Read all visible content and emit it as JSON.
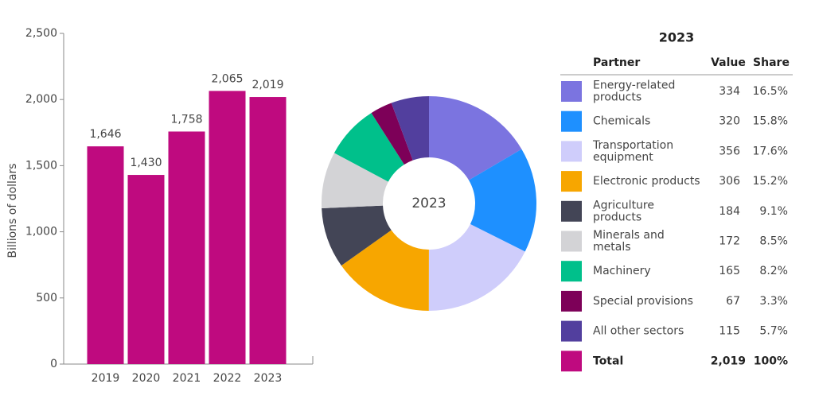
{
  "chart_data": [
    {
      "type": "bar",
      "ylabel": "Billions of dollars",
      "categories": [
        "2019",
        "2020",
        "2021",
        "2022",
        "2023"
      ],
      "values": [
        1646,
        1430,
        1758,
        2065,
        2019
      ],
      "value_labels": [
        "1,646",
        "1,430",
        "1,758",
        "2,065",
        "2,019"
      ],
      "color": "#bf0a7f",
      "ylim": [
        0,
        2500
      ],
      "yticks": [
        0,
        500,
        {
          "value": 1000,
          "label": "1,000"
        },
        {
          "value": 1500,
          "label": "1,500"
        },
        {
          "value": 2000,
          "label": "2,000"
        },
        {
          "value": 2500,
          "label": "2,500"
        }
      ]
    },
    {
      "type": "pie",
      "title": "2023",
      "center_label": "2023",
      "columns": [
        "Partner",
        "Value",
        "Share"
      ],
      "categories": [
        "Energy-related products",
        "Chemicals",
        "Transportation equipment",
        "Electronic products",
        "Agriculture products",
        "Minerals and metals",
        "Machinery",
        "Special provisions",
        "All other sectors"
      ],
      "values": [
        334,
        320,
        356,
        306,
        184,
        172,
        165,
        67,
        115
      ],
      "colors": [
        "#7b74e0",
        "#1e90ff",
        "#cfcdfb",
        "#f7a600",
        "#434556",
        "#d3d3d6",
        "#00c08b",
        "#7d0058",
        "#523f9e"
      ],
      "shares": [
        {
          "value": 16.5,
          "label": "16.5%"
        },
        {
          "value": 15.8,
          "label": "15.8%"
        },
        {
          "value": 17.6,
          "label": "17.6%"
        },
        {
          "value": 15.2,
          "label": "15.2%"
        },
        {
          "value": 9.1,
          "label": "9.1%"
        },
        {
          "value": 8.5,
          "label": "8.5%"
        },
        {
          "value": 8.2,
          "label": "8.2%"
        },
        {
          "value": 3.3,
          "label": "3.3%"
        },
        {
          "value": 5.7,
          "label": "5.7%"
        }
      ],
      "total": {
        "label": "Total",
        "value": 2019,
        "value_label": "2,019",
        "share": 100,
        "share_label": "100%",
        "color": "#bf0a7f"
      }
    }
  ]
}
